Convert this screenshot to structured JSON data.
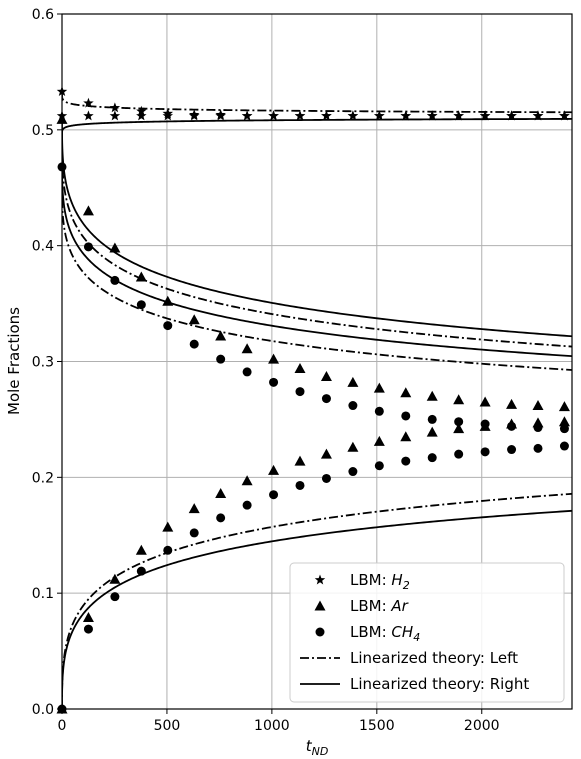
{
  "chart_data": {
    "type": "line",
    "title": "",
    "xlabel": "t",
    "xlabel_sub": "ND",
    "ylabel": "Mole Fractions",
    "xlim": [
      0,
      2430
    ],
    "ylim": [
      0.0,
      0.6
    ],
    "xticks": [
      0,
      500,
      1000,
      1500,
      2000
    ],
    "xtick_labels": [
      "0",
      "500",
      "1000",
      "1500",
      "2000"
    ],
    "yticks": [
      0.0,
      0.1,
      0.2,
      0.3,
      0.4,
      0.5,
      0.6
    ],
    "ytick_labels": [
      "0.0",
      "0.1",
      "0.2",
      "0.3",
      "0.4",
      "0.5",
      "0.6"
    ],
    "grid": true,
    "legend_position": "lower-right",
    "legend": [
      {
        "prefix": "LBM: ",
        "species": "H",
        "sub": "2",
        "marker": "star"
      },
      {
        "prefix": "LBM: ",
        "species": "Ar",
        "sub": "",
        "marker": "triangle"
      },
      {
        "prefix": "LBM: ",
        "species": "CH",
        "sub": "4",
        "marker": "circle"
      },
      {
        "prefix": "Linearized theory: Left",
        "species": "",
        "sub": "",
        "marker": "dashdot"
      },
      {
        "prefix": "Linearized theory: Right",
        "species": "",
        "sub": "",
        "marker": "solid"
      }
    ],
    "marker_x": [
      0,
      126,
      252,
      378,
      504,
      630,
      756,
      882,
      1008,
      1134,
      1260,
      1386,
      1512,
      1638,
      1764,
      1890,
      2016,
      2142,
      2268,
      2394
    ],
    "series": [
      {
        "name": "LBM: H2 (Left)",
        "marker": "star",
        "values": [
          0.533,
          0.523,
          0.519,
          0.516,
          0.514,
          0.513,
          0.513,
          0.512,
          0.512,
          0.512,
          0.512,
          0.512,
          0.512,
          0.512,
          0.512,
          0.512,
          0.512,
          0.512,
          0.512,
          0.512
        ]
      },
      {
        "name": "LBM: Ar (Left)",
        "marker": "triangle",
        "values": [
          0.509,
          0.43,
          0.398,
          0.373,
          0.352,
          0.336,
          0.322,
          0.311,
          0.302,
          0.294,
          0.287,
          0.282,
          0.277,
          0.273,
          0.27,
          0.267,
          0.265,
          0.263,
          0.262,
          0.261
        ]
      },
      {
        "name": "LBM: CH4 (Left)",
        "marker": "circle",
        "values": [
          0.468,
          0.399,
          0.37,
          0.349,
          0.331,
          0.315,
          0.302,
          0.291,
          0.282,
          0.274,
          0.268,
          0.262,
          0.257,
          0.253,
          0.25,
          0.248,
          0.246,
          0.244,
          0.243,
          0.242
        ]
      },
      {
        "name": "LBM: H2 (Right)",
        "marker": "star",
        "values": [
          0.512,
          0.512,
          0.512,
          0.512,
          0.512,
          0.512,
          0.512,
          0.512,
          0.512,
          0.512,
          0.512,
          0.512,
          0.512,
          0.512,
          0.512,
          0.512,
          0.512,
          0.512,
          0.512,
          0.512
        ]
      },
      {
        "name": "LBM: Ar (Right)",
        "marker": "triangle",
        "values": [
          0.0,
          0.079,
          0.112,
          0.137,
          0.157,
          0.173,
          0.186,
          0.197,
          0.206,
          0.214,
          0.22,
          0.226,
          0.231,
          0.235,
          0.239,
          0.242,
          0.244,
          0.246,
          0.247,
          0.248
        ]
      },
      {
        "name": "LBM: CH4 (Right)",
        "marker": "circle",
        "values": [
          0.0,
          0.069,
          0.097,
          0.119,
          0.137,
          0.152,
          0.165,
          0.176,
          0.185,
          0.193,
          0.199,
          0.205,
          0.21,
          0.214,
          0.217,
          0.22,
          0.222,
          0.224,
          0.225,
          0.227
        ]
      }
    ],
    "theory_curves": [
      {
        "side": "Left",
        "style": "dashdot",
        "start": 0.533,
        "end": 0.512,
        "tau": 190,
        "k": 0.25
      },
      {
        "side": "Right",
        "style": "solid",
        "start": 0.495,
        "end": 0.512,
        "tau": 190,
        "k": 0.25
      },
      {
        "side": "Left",
        "style": "dashdot",
        "start": 0.495,
        "end": 0.2465,
        "tau": 1100,
        "k": 0.35
      },
      {
        "side": "Right",
        "style": "solid",
        "start": 0.509,
        "end": 0.2535,
        "tau": 1100,
        "k": 0.35
      },
      {
        "side": "Left",
        "style": "dashdot",
        "start": 0.455,
        "end": 0.2335,
        "tau": 1100,
        "k": 0.35
      },
      {
        "side": "Right",
        "style": "solid",
        "start": 0.475,
        "end": 0.2425,
        "tau": 1100,
        "k": 0.35
      },
      {
        "side": "Left",
        "style": "dashdot",
        "start": 0.0,
        "end": 0.2535,
        "tau": 1100,
        "k": 0.35
      },
      {
        "side": "Right",
        "style": "solid",
        "start": 0.0,
        "end": 0.2335,
        "tau": 1100,
        "k": 0.35
      }
    ]
  }
}
